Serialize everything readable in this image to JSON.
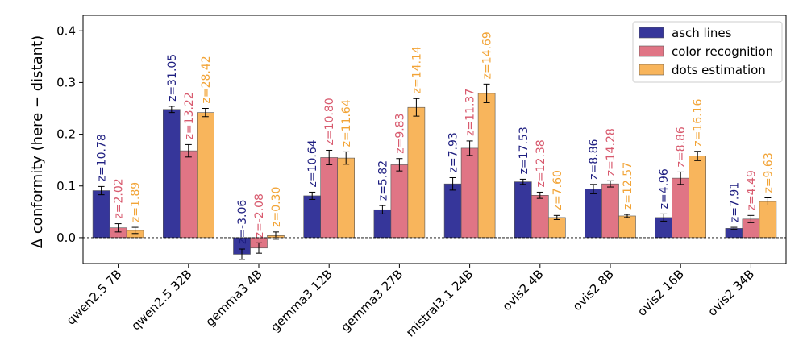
{
  "chart_data": {
    "type": "bar",
    "ylabel": "Δ conformity (here − distant)",
    "ylim": [
      -0.05,
      0.43
    ],
    "yticks": [
      0.0,
      0.1,
      0.2,
      0.3,
      0.4
    ],
    "ytick_labels": [
      "0.0",
      "0.1",
      "0.2",
      "0.3",
      "0.4"
    ],
    "zero_line": "dashed",
    "grid": false,
    "legend_position": "top-right",
    "categories": [
      "qwen2.5 7B",
      "qwen2.5 32B",
      "gemma3 4B",
      "gemma3 12B",
      "gemma3 27B",
      "mistral3.1 24B",
      "ovis2 4B",
      "ovis2 8B",
      "ovis2 16B",
      "ovis2 34B"
    ],
    "series": [
      {
        "name": "asch lines",
        "color": "#36369a",
        "values": [
          0.091,
          0.248,
          -0.032,
          0.081,
          0.054,
          0.104,
          0.108,
          0.094,
          0.039,
          0.018
        ],
        "errors": [
          0.008,
          0.006,
          0.01,
          0.007,
          0.008,
          0.012,
          0.005,
          0.009,
          0.007,
          0.002
        ],
        "labels": [
          "z=10.78",
          "z=31.05",
          "z=-3.06",
          "z=10.64",
          "z=5.82",
          "z=7.93",
          "z=17.53",
          "z=8.86",
          "z=4.96",
          "z=7.91"
        ]
      },
      {
        "name": "color recognition",
        "color": "#e07585",
        "values": [
          0.019,
          0.168,
          -0.02,
          0.155,
          0.141,
          0.173,
          0.082,
          0.104,
          0.115,
          0.036
        ],
        "errors": [
          0.008,
          0.012,
          0.01,
          0.014,
          0.012,
          0.014,
          0.006,
          0.006,
          0.012,
          0.007
        ],
        "labels": [
          "z=2.02",
          "z=13.22",
          "z=-2.08",
          "z=10.80",
          "z=9.83",
          "z=11.37",
          "z=12.38",
          "z=14.28",
          "z=8.86",
          "z=4.49"
        ]
      },
      {
        "name": "dots estimation",
        "color": "#f8b55c",
        "values": [
          0.014,
          0.242,
          0.004,
          0.154,
          0.252,
          0.279,
          0.039,
          0.042,
          0.158,
          0.07
        ],
        "errors": [
          0.006,
          0.008,
          0.007,
          0.012,
          0.017,
          0.018,
          0.004,
          0.003,
          0.009,
          0.007
        ],
        "labels": [
          "z=1.89",
          "z=28.42",
          "z=0.30",
          "z=11.64",
          "z=14.14",
          "z=14.69",
          "z=7.60",
          "z=12.57",
          "z=16.16",
          "z=9.63"
        ]
      }
    ],
    "label_colors": [
      "#1e1e80",
      "#d85a6e",
      "#f2a437"
    ]
  }
}
